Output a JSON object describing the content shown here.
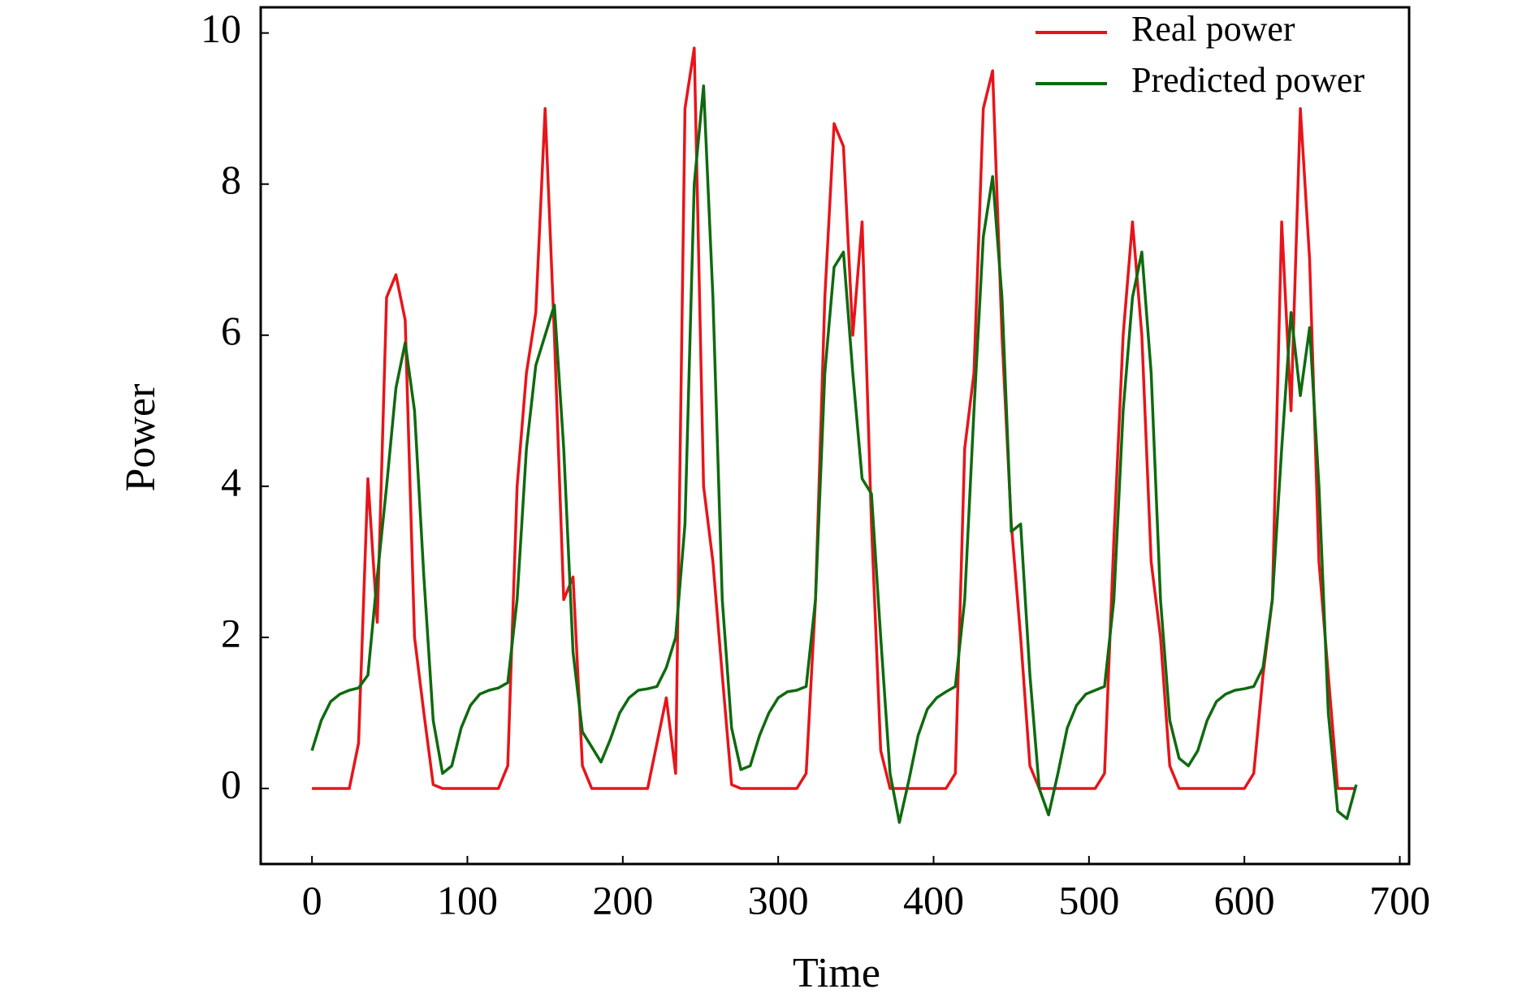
{
  "chart_data": {
    "type": "line",
    "xlabel": "Time",
    "ylabel": "Power",
    "x": [
      0,
      6,
      12,
      18,
      24,
      30,
      36,
      42,
      48,
      54,
      60,
      66,
      72,
      78,
      84,
      90,
      96,
      102,
      108,
      114,
      120,
      126,
      132,
      138,
      144,
      150,
      156,
      162,
      168,
      174,
      180,
      186,
      192,
      198,
      204,
      210,
      216,
      222,
      228,
      234,
      240,
      246,
      252,
      258,
      264,
      270,
      276,
      282,
      288,
      294,
      300,
      306,
      312,
      318,
      324,
      330,
      336,
      342,
      348,
      354,
      360,
      366,
      372,
      378,
      384,
      390,
      396,
      402,
      408,
      414,
      420,
      426,
      432,
      438,
      444,
      450,
      456,
      462,
      468,
      474,
      480,
      486,
      492,
      498,
      504,
      510,
      516,
      522,
      528,
      534,
      540,
      546,
      552,
      558,
      564,
      570,
      576,
      582,
      588,
      594,
      600,
      606,
      612,
      618,
      624,
      630,
      636,
      642,
      648,
      654,
      660,
      666,
      672
    ],
    "series": [
      {
        "name": "Real power",
        "color": "#e8141a",
        "values": [
          0,
          0,
          0,
          0,
          0,
          0.6,
          4.1,
          2.2,
          6.5,
          6.8,
          6.2,
          2.0,
          1.0,
          0.05,
          0,
          0,
          0,
          0,
          0,
          0,
          0,
          0.3,
          4.0,
          5.5,
          6.3,
          9.0,
          6.0,
          2.5,
          2.8,
          0.3,
          0,
          0,
          0,
          0,
          0,
          0,
          0,
          0.6,
          1.2,
          0.2,
          9.0,
          9.8,
          4.0,
          3.0,
          1.5,
          0.05,
          0,
          0,
          0,
          0,
          0,
          0,
          0,
          0.2,
          2.5,
          6.5,
          8.8,
          8.5,
          6.0,
          7.5,
          3.5,
          0.5,
          0,
          0,
          0,
          0,
          0,
          0,
          0,
          0.2,
          4.5,
          5.5,
          9.0,
          9.5,
          6.0,
          3.5,
          2.0,
          0.3,
          0,
          0,
          0,
          0,
          0,
          0,
          0,
          0.2,
          3.3,
          6.0,
          7.5,
          6.0,
          3.0,
          2.0,
          0.3,
          0,
          0,
          0,
          0,
          0,
          0,
          0,
          0,
          0.2,
          1.5,
          2.5,
          7.5,
          5.0,
          9.0,
          7.0,
          3.0,
          1.5,
          0,
          0,
          0
        ]
      },
      {
        "name": "Predicted power",
        "color": "#0f6a0f",
        "values": [
          0.5,
          0.9,
          1.15,
          1.25,
          1.3,
          1.33,
          1.5,
          2.8,
          4.0,
          5.3,
          5.9,
          5.0,
          2.8,
          0.9,
          0.2,
          0.3,
          0.8,
          1.1,
          1.25,
          1.3,
          1.33,
          1.4,
          2.5,
          4.5,
          5.6,
          6.0,
          6.4,
          4.5,
          1.8,
          0.75,
          0.55,
          0.35,
          0.65,
          1.0,
          1.2,
          1.3,
          1.32,
          1.35,
          1.6,
          2.0,
          3.5,
          8.0,
          9.3,
          6.5,
          2.5,
          0.8,
          0.25,
          0.3,
          0.7,
          1.0,
          1.2,
          1.28,
          1.3,
          1.35,
          2.5,
          5.5,
          6.9,
          7.1,
          5.5,
          4.1,
          3.9,
          2.0,
          0.2,
          -0.45,
          0.1,
          0.7,
          1.05,
          1.2,
          1.28,
          1.35,
          2.5,
          5.0,
          7.3,
          8.1,
          6.5,
          3.4,
          3.5,
          1.5,
          0.0,
          -0.35,
          0.2,
          0.8,
          1.1,
          1.25,
          1.3,
          1.35,
          2.5,
          5.0,
          6.5,
          7.1,
          5.5,
          2.5,
          0.9,
          0.4,
          0.3,
          0.5,
          0.9,
          1.15,
          1.25,
          1.3,
          1.32,
          1.35,
          1.6,
          2.5,
          4.5,
          6.3,
          5.2,
          6.1,
          4.0,
          1.0,
          -0.3,
          -0.4,
          0.05
        ]
      }
    ],
    "xlim": [
      -33,
      706
    ],
    "ylim": [
      -1.0,
      10.34
    ],
    "xticks": [
      0,
      100,
      200,
      300,
      400,
      500,
      600,
      700
    ],
    "yticks": [
      0,
      2,
      4,
      6,
      8,
      10
    ],
    "legend": "upper right"
  }
}
